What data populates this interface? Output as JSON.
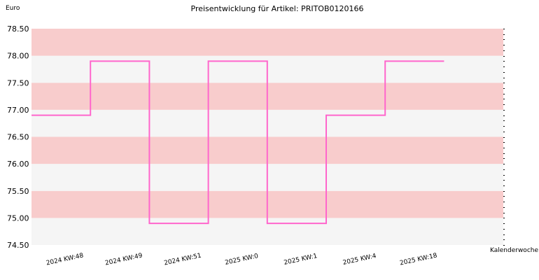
{
  "chart_data": {
    "type": "line",
    "step": true,
    "title": "Preisentwicklung für Artikel: PRITOB0120166",
    "ylabel": "Euro",
    "xlabel": "Kalenderwoche",
    "ylim": [
      74.5,
      78.5
    ],
    "yticks": [
      74.5,
      75.0,
      75.5,
      76.0,
      76.5,
      77.0,
      77.5,
      78.0,
      78.5
    ],
    "ytick_labels": [
      "74.50",
      "75.00",
      "75.50",
      "76.00",
      "76.50",
      "77.00",
      "77.50",
      "78.00",
      "78.50"
    ],
    "categories": [
      "2024 KW:48",
      "2024 KW:49",
      "2024 KW:51",
      "2025 KW:0",
      "2025 KW:1",
      "2025 KW:4",
      "2025 KW:18"
    ],
    "series": [
      {
        "values": [
          76.9,
          77.9,
          74.9,
          77.9,
          74.9,
          76.9,
          77.9
        ]
      }
    ],
    "band_colors": [
      "#f5f5f5",
      "#f8cccc"
    ],
    "line_color": "#ff66cc",
    "grid": false
  }
}
